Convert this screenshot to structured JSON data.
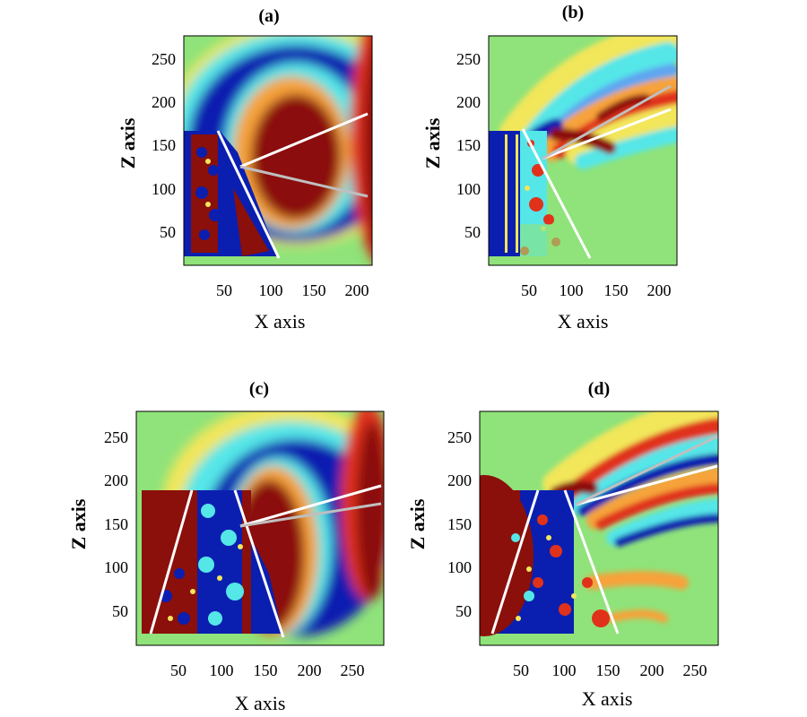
{
  "colors": {
    "background_field": "#8fe37a",
    "deep_red": "#8b0f0a",
    "red": "#e0321b",
    "orange": "#f6a33a",
    "yellow": "#f2e65a",
    "cyan": "#55e6e8",
    "light_blue": "#5fa6f0",
    "blue": "#0a1fb0",
    "deep_blue": "#07145e",
    "overlay_line": "#ffffff",
    "overlay_line_secondary": "#bfbfbf"
  },
  "chart_data": [
    {
      "id": "a",
      "type": "heatmap",
      "title": "(a)",
      "xlabel": "X axis",
      "ylabel": "Z axis",
      "xticks": [
        50,
        100,
        150,
        200
      ],
      "yticks": [
        50,
        100,
        150,
        200,
        250
      ],
      "xlim": [
        0,
        225
      ],
      "ylim": [
        18,
        282
      ],
      "grid": false
    },
    {
      "id": "b",
      "type": "heatmap",
      "title": "(b)",
      "xlabel": "X axis",
      "ylabel": "Z axis",
      "xticks": [
        50,
        100,
        150,
        200
      ],
      "yticks": [
        50,
        100,
        150,
        200,
        250
      ],
      "xlim": [
        0,
        225
      ],
      "ylim": [
        18,
        282
      ],
      "grid": false
    },
    {
      "id": "c",
      "type": "heatmap",
      "title": "(c)",
      "xlabel": "X axis",
      "ylabel": "Z axis",
      "xticks": [
        50,
        100,
        150,
        200,
        250
      ],
      "yticks": [
        50,
        100,
        150,
        200,
        250
      ],
      "xlim": [
        0,
        285
      ],
      "ylim": [
        18,
        282
      ],
      "grid": false
    },
    {
      "id": "d",
      "type": "heatmap",
      "title": "(d)",
      "xlabel": "X axis",
      "ylabel": "Z axis",
      "xticks": [
        50,
        100,
        150,
        200,
        250
      ],
      "yticks": [
        50,
        100,
        150,
        200,
        250
      ],
      "xlim": [
        0,
        285
      ],
      "ylim": [
        18,
        282
      ],
      "grid": false
    }
  ]
}
